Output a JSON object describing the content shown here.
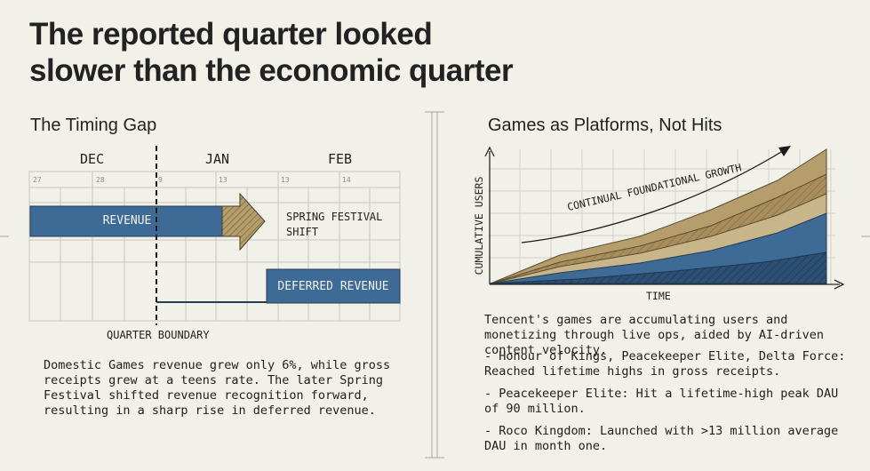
{
  "headline": {
    "line1": "The reported quarter looked",
    "line2": "slower than the economic quarter"
  },
  "left": {
    "title": "The Timing Gap",
    "months": [
      "DEC",
      "JAN",
      "FEB"
    ],
    "days": [
      "27",
      "28",
      "9",
      "13",
      "13",
      "14"
    ],
    "revenue_label": "REVENUE",
    "spring_label_line1": "SPRING FESTIVAL",
    "spring_label_line2": "SHIFT",
    "deferred_label": "DEFERRED REVENUE",
    "quarter_boundary": "QUARTER BOUNDARY",
    "paragraph": "Domestic Games revenue grew only 6%, while gross receipts grew at a teens rate. The later Spring Festival shifted revenue recognition forward, resulting in a sharp rise in deferred revenue."
  },
  "right": {
    "title": "Games as Platforms, Not Hits",
    "y_label": "CUMULATIVE USERS",
    "x_label": "TIME",
    "growth_label": "CONTINUAL FOUNDATIONAL GROWTH",
    "paragraph": "Tencent's games are accumulating users and monetizing through live ops, aided by AI-driven content velocity.",
    "bullets": [
      "- Honour of Kings, Peacekeeper Elite, Delta Force: Reached lifetime highs in gross receipts.",
      "- Peacekeeper Elite: Hit a lifetime-high peak DAU of 90 million.",
      "- Roco Kingdom: Launched with >13 million average DAU in month one."
    ]
  },
  "colors": {
    "background": "#f1f0e9",
    "blue": "#3e6a96",
    "dark_blue": "#2c4f73",
    "tan": "#b59e6c",
    "light_tan": "#c8b68a",
    "grid": "#c9c7bd"
  }
}
